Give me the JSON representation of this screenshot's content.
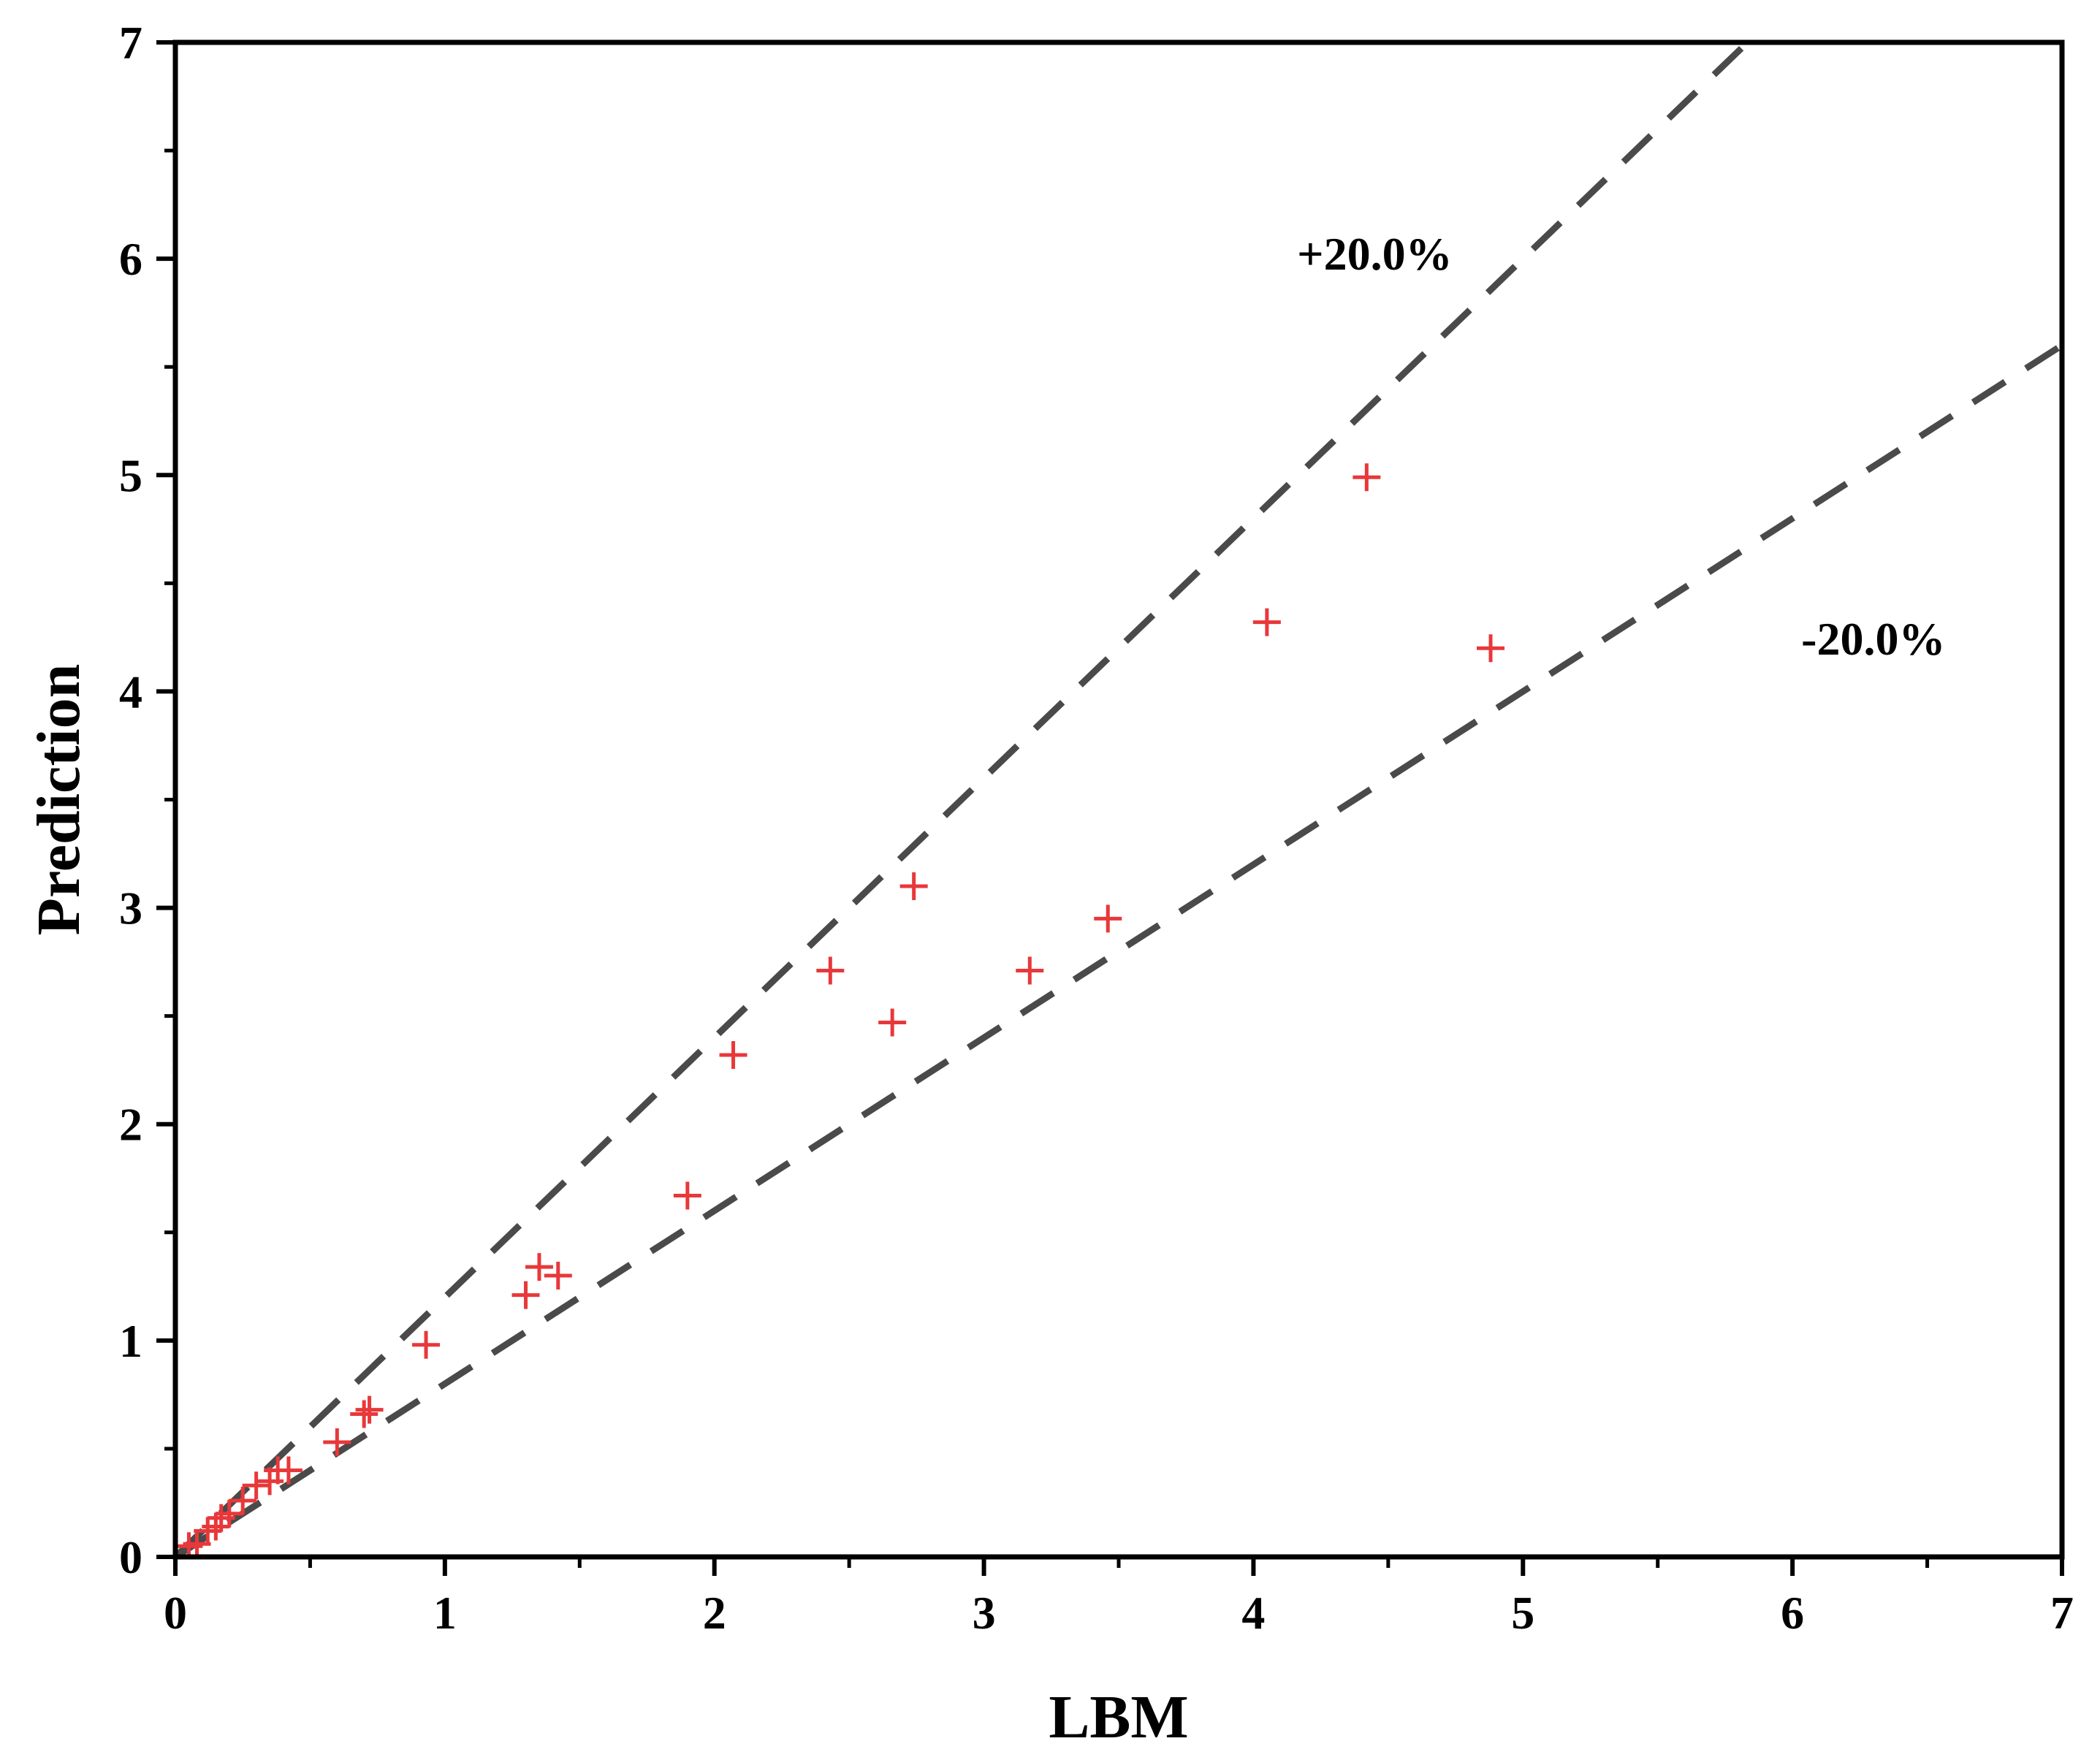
{
  "chart_data": {
    "type": "scatter",
    "title": "",
    "xlabel": "LBM",
    "ylabel": "Prediction",
    "xlim": [
      0,
      7
    ],
    "ylim": [
      0,
      7
    ],
    "xticks": [
      "0",
      "1",
      "2",
      "3",
      "4",
      "5",
      "6",
      "7"
    ],
    "yticks": [
      "0",
      "1",
      "2",
      "3",
      "4",
      "5",
      "6",
      "7"
    ],
    "grid": false,
    "legend": "none",
    "marker": "plus",
    "colors": {
      "points": "#e8383a",
      "bounds": "#4a4a4a",
      "axes": "#000000"
    },
    "reference_lines": [
      {
        "label": "+20.0%",
        "slope": 1.2,
        "label_at": [
          4.45,
          5.95
        ]
      },
      {
        "label": "-20.0%",
        "slope": 0.8,
        "label_at": [
          6.3,
          4.17
        ]
      }
    ],
    "points": [
      [
        0.05,
        0.05
      ],
      [
        0.08,
        0.06
      ],
      [
        0.12,
        0.12
      ],
      [
        0.15,
        0.14
      ],
      [
        0.17,
        0.18
      ],
      [
        0.2,
        0.2
      ],
      [
        0.25,
        0.26
      ],
      [
        0.3,
        0.33
      ],
      [
        0.35,
        0.35
      ],
      [
        0.38,
        0.4
      ],
      [
        0.42,
        0.4
      ],
      [
        0.6,
        0.53
      ],
      [
        0.7,
        0.66
      ],
      [
        0.72,
        0.68
      ],
      [
        0.93,
        0.98
      ],
      [
        1.3,
        1.21
      ],
      [
        1.35,
        1.34
      ],
      [
        1.42,
        1.3
      ],
      [
        1.9,
        1.67
      ],
      [
        2.07,
        2.32
      ],
      [
        2.43,
        2.71
      ],
      [
        2.66,
        2.47
      ],
      [
        2.74,
        3.1
      ],
      [
        3.17,
        2.71
      ],
      [
        3.46,
        2.95
      ],
      [
        4.05,
        4.32
      ],
      [
        4.42,
        4.99
      ],
      [
        4.88,
        4.2
      ]
    ]
  }
}
